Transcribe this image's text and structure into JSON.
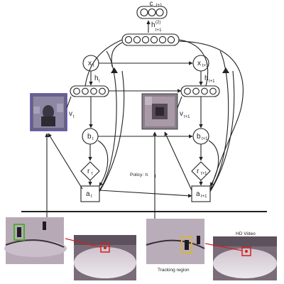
{
  "labels": {
    "c_top": {
      "main": "c",
      "sub": "t+1"
    },
    "h2": {
      "main": "h",
      "sup": "(2)",
      "sub": "t+1"
    },
    "x_t": {
      "main": "x",
      "sub": "t"
    },
    "x_t1": {
      "main": "x",
      "sub": "t+1"
    },
    "h_t": {
      "main": "h",
      "sub": "t"
    },
    "h_t1": {
      "main": "h",
      "sub": "t+1"
    },
    "v_t": {
      "main": "v",
      "sub": "t"
    },
    "v_t1": {
      "main": "v",
      "sub": "t+1"
    },
    "b_t": {
      "main": "b",
      "sub": "t"
    },
    "b_t1": {
      "main": "b",
      "sub": "t+1"
    },
    "r_t": {
      "main": "r",
      "sub": "t"
    },
    "r_t1": {
      "main": "r",
      "sub": "t+1"
    },
    "a_t": {
      "main": "a",
      "sub": "t"
    },
    "a_t1": {
      "main": "a",
      "sub": "t+1"
    },
    "policy": {
      "main": "Policy: π",
      "sub": "t"
    }
  },
  "captions": {
    "tracking_region": "Tracking region",
    "hd_video": "HD Video"
  },
  "colors": {
    "line": "#222222",
    "crop_border": "#5a4fb0",
    "track_box_green": "#4caf2f",
    "track_box_yellow": "#d8b43a",
    "red_box": "#d42020",
    "ice": "#e9e4ea",
    "board": "#b9a8b5"
  }
}
